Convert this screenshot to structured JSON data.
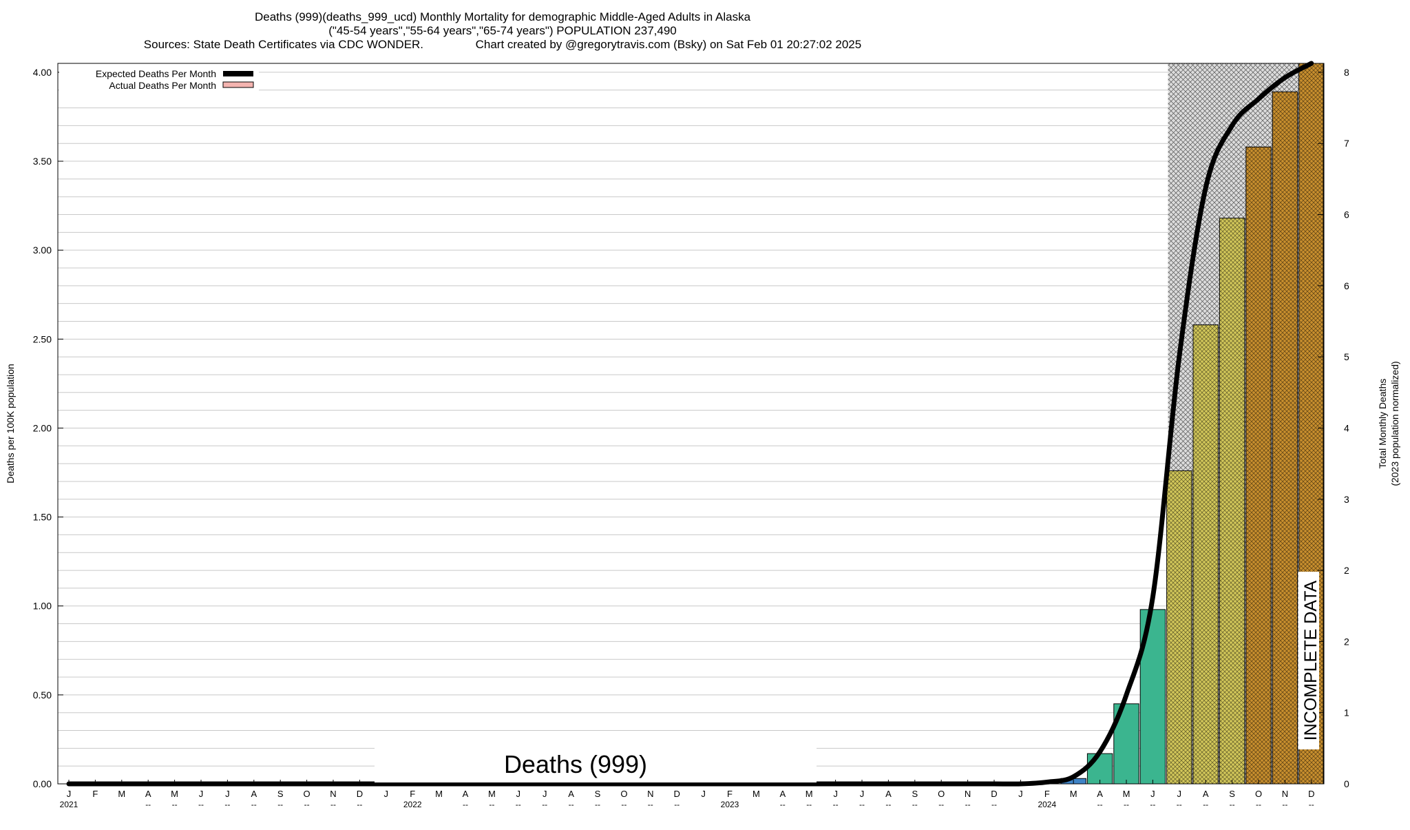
{
  "chart_data": {
    "type": "bar",
    "title_lines": [
      "Deaths (999)(deaths_999_ucd) Monthly Mortality for demographic Middle-Aged Adults in Alaska",
      "(\"45-54 years\",\"55-64 years\",\"65-74 years\") POPULATION 237,490",
      "Sources: State Death Certificates via CDC WONDER.                Chart created by @gregorytravis.com (Bsky) on Sat Feb 01 20:27:02 2025"
    ],
    "ylabel_left": "Deaths per 100K population",
    "ylabel_right_lines": [
      "Total Monthly Deaths",
      "(2023 population normalized)"
    ],
    "ylim_left": [
      0,
      4.05
    ],
    "left_ticks": [
      "0.00",
      "0.50",
      "1.00",
      "1.50",
      "2.00",
      "2.50",
      "3.00",
      "3.50",
      "4.00"
    ],
    "left_tick_values": [
      0,
      0.5,
      1.0,
      1.5,
      2.0,
      2.5,
      3.0,
      3.5,
      4.0
    ],
    "right_ticks": [
      "0",
      "1",
      "2",
      "2",
      "3",
      "4",
      "5",
      "6",
      "6",
      "7",
      "8"
    ],
    "right_tick_values": [
      0,
      0.4,
      0.8,
      1.2,
      1.6,
      2.0,
      2.4,
      2.8,
      3.2,
      3.6,
      4.0
    ],
    "months": [
      "J",
      "F",
      "M",
      "A",
      "M",
      "J",
      "J",
      "A",
      "S",
      "O",
      "N",
      "D",
      "J",
      "F",
      "M",
      "A",
      "M",
      "J",
      "J",
      "A",
      "S",
      "O",
      "N",
      "D",
      "J",
      "F",
      "M",
      "A",
      "M",
      "J",
      "J",
      "A",
      "S",
      "O",
      "N",
      "D",
      "J",
      "F",
      "M",
      "A",
      "M",
      "J",
      "J",
      "A",
      "S",
      "O",
      "N",
      "D"
    ],
    "month_sublabels": [
      "2021",
      "",
      "",
      "--",
      "--",
      "--",
      "--",
      "--",
      "--",
      "--",
      "--",
      "--",
      "",
      "2022",
      "",
      "--",
      "--",
      "--",
      "--",
      "--",
      "--",
      "--",
      "--",
      "--",
      "",
      "2023",
      "",
      "--",
      "--",
      "--",
      "--",
      "--",
      "--",
      "--",
      "--",
      "--",
      "",
      "2024",
      "",
      "--",
      "--",
      "--",
      "--",
      "--",
      "--",
      "--",
      "--",
      "--"
    ],
    "values": [
      0,
      0,
      0,
      0,
      0,
      0,
      0,
      0,
      0,
      0,
      0,
      0,
      0,
      0,
      0,
      0,
      0,
      0,
      0,
      0,
      0,
      0,
      0,
      0,
      0,
      0,
      0,
      0,
      0,
      0,
      0,
      0,
      0,
      0,
      0,
      0,
      0,
      0,
      0.03,
      0.17,
      0.45,
      0.98,
      1.76,
      2.58,
      3.18,
      3.58,
      3.89,
      4.05
    ],
    "expected": [
      0,
      0,
      0,
      0,
      0,
      0,
      0,
      0,
      0,
      0,
      0,
      0,
      0,
      0,
      0,
      0,
      0,
      0,
      0,
      0,
      0,
      0,
      0,
      0,
      0,
      0,
      0,
      0,
      0,
      0,
      0,
      0,
      0,
      0,
      0,
      0,
      0,
      0.01,
      0.04,
      0.18,
      0.5,
      1.05,
      2.4,
      3.35,
      3.7,
      3.85,
      3.97,
      4.05
    ],
    "bar_colors": [
      "#3f84c7",
      "#3f84c7",
      "#3f84c7",
      "#3f84c7",
      "#3f84c7",
      "#3f84c7",
      "#3f84c7",
      "#3f84c7",
      "#3f84c7",
      "#3f84c7",
      "#3f84c7",
      "#3f84c7",
      "#3f84c7",
      "#3f84c7",
      "#3f84c7",
      "#3f84c7",
      "#3f84c7",
      "#3f84c7",
      "#3f84c7",
      "#3f84c7",
      "#3f84c7",
      "#3f84c7",
      "#3f84c7",
      "#3f84c7",
      "#3f84c7",
      "#3f84c7",
      "#3f84c7",
      "#3f84c7",
      "#3f84c7",
      "#3f84c7",
      "#3f84c7",
      "#3f84c7",
      "#3f84c7",
      "#3f84c7",
      "#3f84c7",
      "#3f84c7",
      "#3f84c7",
      "#3f84c7",
      "#3f84c7",
      "#3bb58f",
      "#3bb58f",
      "#3bb58f",
      "#d2c75a",
      "#d2c75a",
      "#d2c75a",
      "#c88f2e",
      "#c88f2e",
      "#c88f2e"
    ],
    "incomplete_from_index": 42,
    "legend": [
      {
        "label": "Expected Deaths Per Month",
        "color": "#000000"
      },
      {
        "label": "Actual Deaths Per Month",
        "color": "#f4b4b0"
      }
    ],
    "legend_position": "top-left",
    "center_label": "Deaths (999)",
    "incomplete_label": "INCOMPLETE DATA",
    "grid": true
  }
}
